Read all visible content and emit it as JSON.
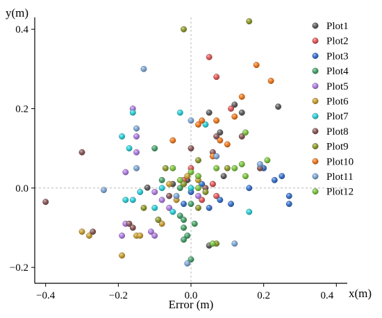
{
  "chart_data": {
    "type": "scatter",
    "title": "",
    "xlabel": "Error (m)",
    "x_unit_label": "x(m)",
    "ylabel": "y(m)",
    "xlim": [
      -0.43,
      0.43
    ],
    "ylim": [
      -0.24,
      0.43
    ],
    "x_ticks": [
      -0.4,
      -0.2,
      0.0,
      0.2,
      0.4
    ],
    "x_tick_labels": [
      "−0.4",
      "−0.2",
      "0.0",
      "0.2",
      "0.4"
    ],
    "y_ticks": [
      -0.2,
      0.0,
      0.2,
      0.4
    ],
    "y_tick_labels": [
      "−0.2",
      "0.0",
      "0.2",
      "0.4"
    ],
    "grid": false,
    "reference_lines": {
      "x": 0,
      "y": 0
    },
    "legend_position": "right",
    "series": [
      {
        "name": "Plot1",
        "color": "#5f5f5f",
        "points": [
          [
            -0.12,
            0.001
          ],
          [
            0.05,
            0.19
          ],
          [
            0.14,
            0.19
          ],
          [
            0.12,
            0.21
          ],
          [
            0.24,
            0.205
          ],
          [
            0.08,
            0.14
          ],
          [
            -0.05,
            0.01
          ],
          [
            0.06,
            0.01
          ],
          [
            0.09,
            0.03
          ],
          [
            0.05,
            -0.145
          ],
          [
            -0.01,
            0.02
          ]
        ]
      },
      {
        "name": "Plot2",
        "color": "#e05a5a",
        "points": [
          [
            0.05,
            0.33
          ],
          [
            0.07,
            0.28
          ],
          [
            0.11,
            0.2
          ],
          [
            0.0,
            0.05
          ],
          [
            0.06,
            0.01
          ],
          [
            0.03,
            -0.03
          ],
          [
            0.07,
            -0.02
          ],
          [
            -0.02,
            0.02
          ]
        ]
      },
      {
        "name": "Plot3",
        "color": "#3a74cc",
        "points": [
          [
            0.2,
            0.05
          ],
          [
            0.25,
            0.03
          ],
          [
            0.27,
            -0.02
          ],
          [
            0.27,
            -0.04
          ],
          [
            0.23,
            0.02
          ],
          [
            0.16,
            0.0
          ],
          [
            0.05,
            -0.05
          ],
          [
            0.08,
            -0.03
          ],
          [
            0.11,
            -0.04
          ],
          [
            0.03,
            0.01
          ],
          [
            -0.02,
            -0.04
          ],
          [
            0.0,
            -0.01
          ]
        ]
      },
      {
        "name": "Plot4",
        "color": "#4aa36c",
        "points": [
          [
            -0.02,
            -0.13
          ],
          [
            -0.02,
            -0.1
          ],
          [
            -0.01,
            -0.12
          ],
          [
            -0.08,
            0.02
          ],
          [
            -0.1,
            0.1
          ],
          [
            -0.03,
            0.0
          ],
          [
            0.0,
            -0.04
          ],
          [
            -0.03,
            -0.07
          ],
          [
            0.01,
            -0.09
          ],
          [
            -0.02,
            -0.08
          ],
          [
            0.0,
            -0.18
          ]
        ]
      },
      {
        "name": "Plot5",
        "color": "#b07fe0",
        "points": [
          [
            -0.16,
            0.2
          ],
          [
            -0.15,
            0.13
          ],
          [
            -0.15,
            0.09
          ],
          [
            -0.18,
            0.04
          ],
          [
            -0.18,
            -0.09
          ],
          [
            -0.19,
            -0.12
          ],
          [
            -0.1,
            -0.01
          ],
          [
            -0.08,
            -0.03
          ],
          [
            -0.09,
            -0.08
          ],
          [
            -0.06,
            -0.05
          ],
          [
            0.02,
            -0.02
          ],
          [
            -0.1,
            -0.12
          ],
          [
            -0.11,
            -0.11
          ]
        ]
      },
      {
        "name": "Plot6",
        "color": "#c9a033",
        "points": [
          [
            -0.3,
            -0.11
          ],
          [
            -0.28,
            -0.12
          ],
          [
            -0.19,
            -0.17
          ],
          [
            -0.15,
            -0.12
          ],
          [
            -0.14,
            -0.12
          ],
          [
            -0.08,
            -0.09
          ],
          [
            -0.06,
            0.01
          ],
          [
            0.02,
            0.02
          ],
          [
            -0.01,
            0.03
          ],
          [
            -0.04,
            -0.03
          ]
        ]
      },
      {
        "name": "Plot7",
        "color": "#2fcfd9",
        "points": [
          [
            -0.19,
            0.13
          ],
          [
            -0.17,
            0.1
          ],
          [
            -0.18,
            -0.03
          ],
          [
            -0.14,
            -0.01
          ],
          [
            -0.16,
            0.19
          ],
          [
            -0.16,
            -0.03
          ],
          [
            -0.03,
            0.19
          ],
          [
            0.04,
            0.16
          ],
          [
            -0.08,
            0.0
          ],
          [
            -0.05,
            -0.06
          ],
          [
            0.0,
            0.0
          ],
          [
            0.16,
            -0.06
          ],
          [
            -0.1,
            -0.05
          ]
        ]
      },
      {
        "name": "Plot8",
        "color": "#8b5a5a",
        "points": [
          [
            -0.4,
            -0.035
          ],
          [
            -0.3,
            0.09
          ],
          [
            -0.27,
            -0.11
          ],
          [
            -0.17,
            -0.09
          ],
          [
            -0.16,
            -0.1
          ],
          [
            -0.06,
            -0.02
          ],
          [
            -0.02,
            0.01
          ],
          [
            0.0,
            0.1
          ],
          [
            0.06,
            0.09
          ],
          [
            0.07,
            0.13
          ],
          [
            0.14,
            0.13
          ],
          [
            0.19,
            0.05
          ],
          [
            0.04,
            0.0
          ]
        ]
      },
      {
        "name": "Plot9",
        "color": "#8f9a2f",
        "points": [
          [
            -0.02,
            0.4
          ],
          [
            0.16,
            0.42
          ],
          [
            0.02,
            0.07
          ],
          [
            -0.07,
            0.05
          ],
          [
            -0.02,
            0.01
          ],
          [
            0.02,
            -0.05
          ],
          [
            0.04,
            -0.01
          ],
          [
            -0.13,
            -0.05
          ],
          [
            -0.09,
            -0.08
          ],
          [
            0.07,
            -0.14
          ],
          [
            0.1,
            0.05
          ]
        ]
      },
      {
        "name": "Plot10",
        "color": "#f07a20",
        "points": [
          [
            0.18,
            0.31
          ],
          [
            0.22,
            0.27
          ],
          [
            0.14,
            0.23
          ],
          [
            0.12,
            0.18
          ],
          [
            0.1,
            0.11
          ],
          [
            0.07,
            0.17
          ],
          [
            0.03,
            0.17
          ],
          [
            0.02,
            0.16
          ],
          [
            0.08,
            0.12
          ],
          [
            0.06,
            0.08
          ],
          [
            -0.05,
            0.12
          ]
        ]
      },
      {
        "name": "Plot11",
        "color": "#7fa8d6",
        "points": [
          [
            -0.13,
            0.3
          ],
          [
            -0.24,
            -0.005
          ],
          [
            -0.15,
            0.05
          ],
          [
            -0.15,
            0.15
          ],
          [
            0.19,
            0.06
          ],
          [
            0.12,
            -0.14
          ],
          [
            -0.01,
            -0.19
          ],
          [
            0.07,
            0.08
          ],
          [
            0.0,
            0.17
          ],
          [
            -0.04,
            -0.02
          ]
        ]
      },
      {
        "name": "Plot12",
        "color": "#7cc441",
        "points": [
          [
            0.15,
            0.14
          ],
          [
            0.21,
            0.07
          ],
          [
            0.14,
            0.06
          ],
          [
            0.15,
            0.03
          ],
          [
            0.12,
            0.05
          ],
          [
            0.07,
            0.05
          ],
          [
            0.02,
            0.03
          ],
          [
            0.0,
            0.04
          ],
          [
            -0.05,
            0.05
          ],
          [
            -0.03,
            0.02
          ],
          [
            0.02,
            0.0
          ],
          [
            0.06,
            -0.14
          ]
        ]
      }
    ]
  }
}
